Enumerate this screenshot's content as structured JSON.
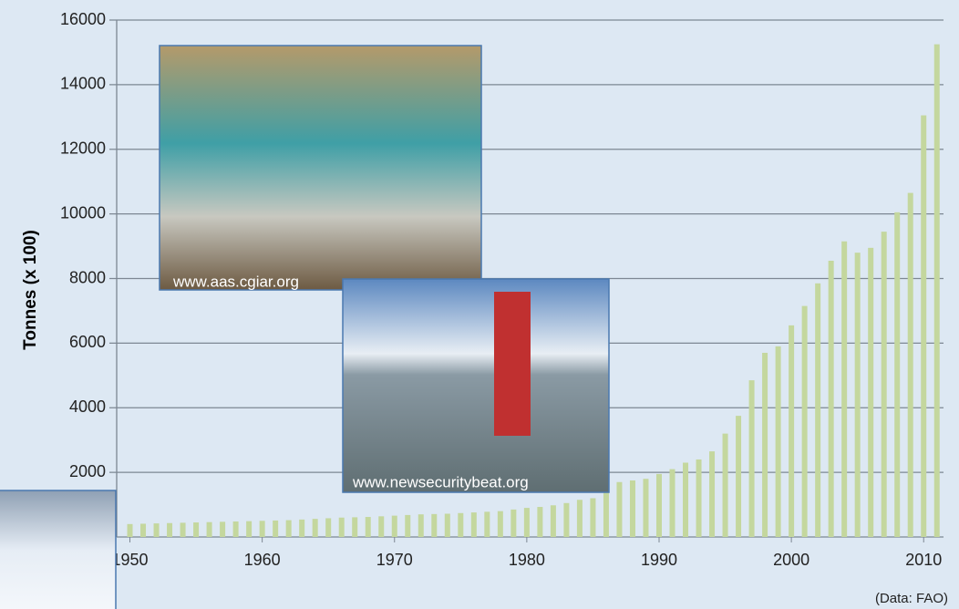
{
  "chart_data": {
    "type": "bar",
    "y_label": "Tonnes (x 100)",
    "source": "(Data: FAO)",
    "annotations": [
      "www.aas.cgiar.org",
      "www.newsecuritybeat.org"
    ],
    "color": "#c4d79e",
    "grid": true,
    "x": [
      1950,
      1951,
      1952,
      1953,
      1954,
      1955,
      1956,
      1957,
      1958,
      1959,
      1960,
      1961,
      1962,
      1963,
      1964,
      1965,
      1966,
      1967,
      1968,
      1969,
      1970,
      1971,
      1972,
      1973,
      1974,
      1975,
      1976,
      1977,
      1978,
      1979,
      1980,
      1981,
      1982,
      1983,
      1984,
      1985,
      1986,
      1987,
      1988,
      1989,
      1990,
      1991,
      1992,
      1993,
      1994,
      1995,
      1996,
      1997,
      1998,
      1999,
      2000,
      2001,
      2002,
      2003,
      2004,
      2005,
      2006,
      2007,
      2008,
      2009,
      2010,
      2011
    ],
    "values": [
      400,
      410,
      420,
      430,
      440,
      450,
      460,
      470,
      480,
      490,
      500,
      510,
      520,
      540,
      560,
      580,
      600,
      610,
      620,
      640,
      660,
      680,
      700,
      710,
      720,
      740,
      760,
      780,
      800,
      850,
      900,
      930,
      980,
      1050,
      1150,
      1200,
      1400,
      1700,
      1750,
      1800,
      1950,
      2100,
      2300,
      2400,
      2650,
      3200,
      3750,
      4850,
      5700,
      5900,
      6550,
      7150,
      7850,
      8550,
      9150,
      8800,
      8950,
      9450,
      10050,
      10650,
      13050,
      15250
    ],
    "xlim": [
      1949,
      2011.5
    ],
    "xticks": [
      1950,
      1960,
      1970,
      1980,
      1990,
      2000,
      2010
    ],
    "ylim": [
      0,
      16000
    ],
    "yticks": [
      2000,
      4000,
      6000,
      8000,
      10000,
      12000,
      14000,
      16000
    ]
  }
}
